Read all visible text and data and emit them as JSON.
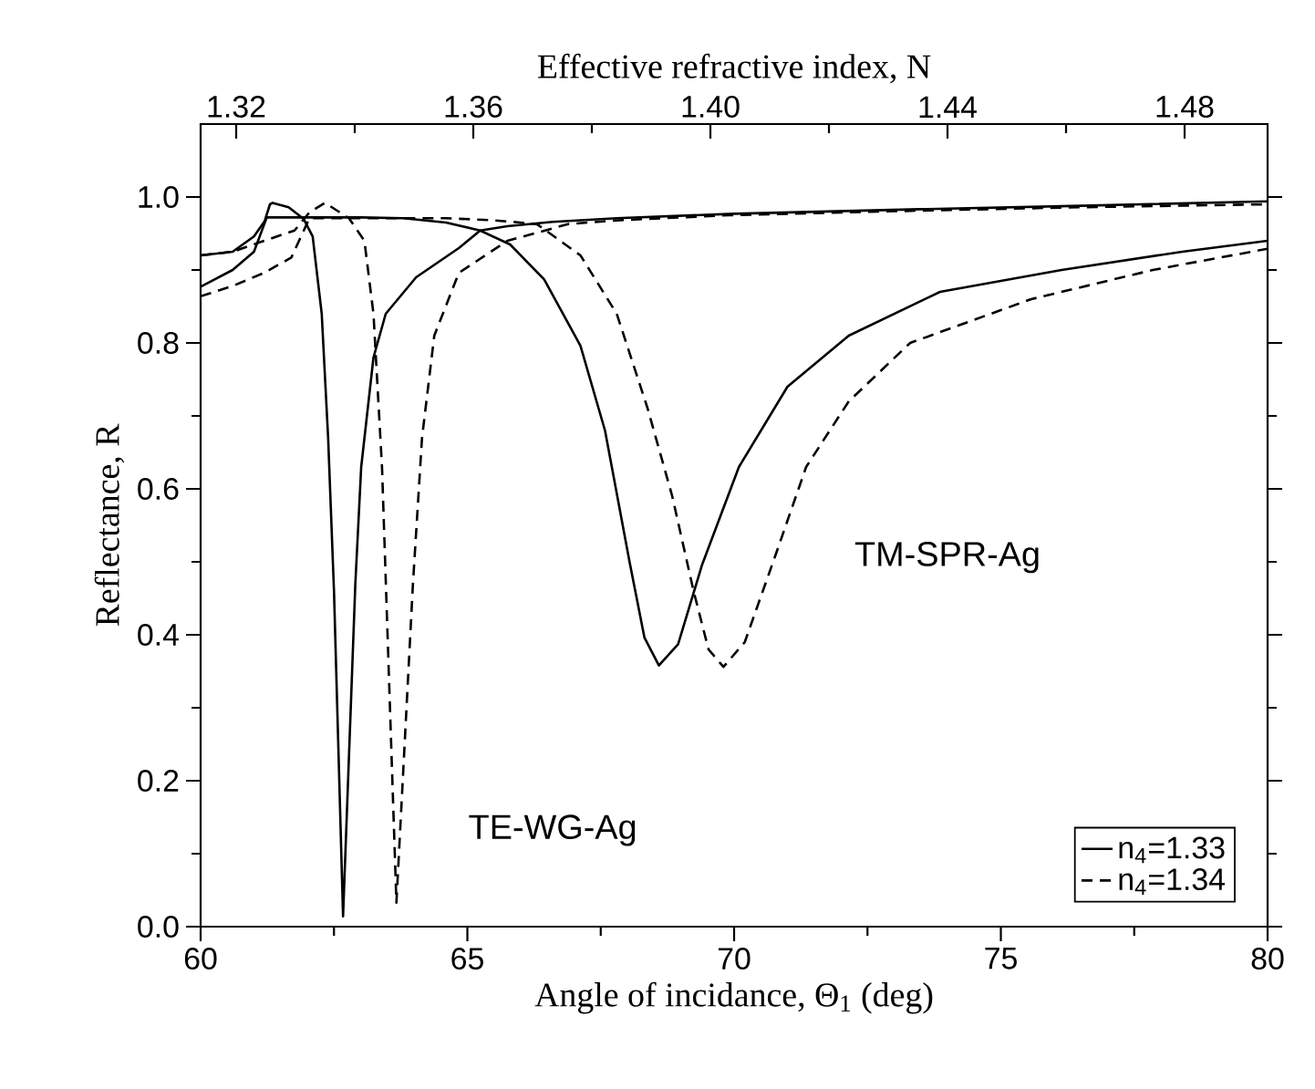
{
  "chart_data": {
    "type": "line",
    "xlabel": "Angle of incidance, Θ$_{1}$ (deg)",
    "ylabel": "Reflectance, R",
    "x2label": "Effective refractive index, N",
    "xlim": [
      60,
      80
    ],
    "ylim": [
      0,
      1.1
    ],
    "x2lim": [
      1.314,
      1.494
    ],
    "xticks": [
      60,
      {
        "value": 62.5,
        "label": null
      },
      65,
      {
        "value": 67.5,
        "label": null
      },
      70,
      {
        "value": 72.5,
        "label": null
      },
      75,
      {
        "value": 77.5,
        "label": null
      },
      80
    ],
    "yticks": [
      {
        "value": 0,
        "label": "0.0"
      },
      {
        "value": 0.1,
        "label": null
      },
      0.2,
      {
        "value": 0.3,
        "label": null
      },
      0.4,
      {
        "value": 0.5,
        "label": null
      },
      0.6,
      {
        "value": 0.7,
        "label": null
      },
      0.8,
      {
        "value": 0.9,
        "label": null
      },
      {
        "value": 1,
        "label": "1.0"
      }
    ],
    "x2ticks": [
      1.32,
      {
        "value": 1.34,
        "label": null
      },
      1.36,
      {
        "value": 1.38,
        "label": null
      },
      {
        "value": 1.4,
        "label": "1.40"
      },
      {
        "value": 1.42,
        "label": null
      },
      1.44,
      {
        "value": 1.46,
        "label": null
      },
      1.48
    ],
    "legend": "bottom right",
    "series": [
      {
        "name": "n$_{4}$=1.33",
        "color": "#000000",
        "line_style": "solid",
        "x": [
          60,
          60.6,
          61.0,
          61.2,
          61.3,
          61.35,
          61.65,
          61.93,
          62.1,
          62.27,
          62.39,
          62.5,
          62.67,
          62.9,
          63.01,
          63.24,
          63.47,
          64.04,
          64.84,
          65.24,
          65.75,
          66.6,
          67.8,
          70,
          73.3,
          76.5,
          80
        ],
        "values": [
          0.92,
          0.925,
          0.946,
          0.967,
          0.99,
          0.992,
          0.986,
          0.97,
          0.946,
          0.84,
          0.67,
          0.46,
          0.014,
          0.47,
          0.63,
          0.78,
          0.84,
          0.89,
          0.93,
          0.954,
          0.96,
          0.966,
          0.971,
          0.977,
          0.983,
          0.988,
          0.994
        ]
      },
      {
        "color": "#000000",
        "line_style": "solid",
        "x": [
          60,
          60.6,
          61.0,
          61.24,
          62.0,
          63.0,
          63.8,
          64.6,
          65.24,
          65.8,
          66.44,
          67.12,
          67.58,
          68.04,
          68.32,
          68.59,
          68.95,
          69.4,
          70.09,
          71.0,
          72.15,
          73.86,
          76.14,
          78.4,
          80
        ],
        "values": [
          0.877,
          0.9,
          0.925,
          0.972,
          0.972,
          0.972,
          0.971,
          0.965,
          0.954,
          0.935,
          0.887,
          0.796,
          0.68,
          0.5,
          0.396,
          0.358,
          0.387,
          0.496,
          0.63,
          0.74,
          0.81,
          0.87,
          0.9,
          0.925,
          0.94
        ]
      },
      {
        "name": "n$_{4}$=1.34",
        "color": "#000000",
        "line_style": "dashed",
        "x": [
          60,
          60.6,
          61.19,
          61.76,
          62.04,
          62.33,
          62.78,
          63.07,
          63.24,
          63.4,
          63.67,
          63.98,
          64.15,
          64.38,
          64.84,
          65.75,
          66.9,
          67.8,
          69.9,
          73.3,
          76.5,
          80
        ],
        "values": [
          0.92,
          0.925,
          0.94,
          0.954,
          0.979,
          0.992,
          0.971,
          0.94,
          0.84,
          0.63,
          0.033,
          0.47,
          0.67,
          0.81,
          0.896,
          0.94,
          0.963,
          0.968,
          0.975,
          0.981,
          0.986,
          0.99
        ]
      },
      {
        "color": "#000000",
        "line_style": "dashed",
        "x": [
          60,
          60.6,
          61.19,
          61.7,
          62.04,
          63.0,
          64.6,
          65.5,
          66.3,
          67.12,
          67.8,
          68.38,
          68.84,
          69.24,
          69.52,
          69.8,
          70.2,
          70.78,
          71.35,
          72.15,
          73.3,
          75.57,
          77.85,
          80
        ],
        "values": [
          0.864,
          0.878,
          0.896,
          0.917,
          0.971,
          0.971,
          0.971,
          0.968,
          0.963,
          0.92,
          0.84,
          0.71,
          0.59,
          0.46,
          0.38,
          0.356,
          0.39,
          0.51,
          0.63,
          0.72,
          0.8,
          0.86,
          0.9,
          0.929
        ]
      }
    ],
    "annotations": [
      "TE-WG-Ag",
      "TM-SPR-Ag"
    ]
  }
}
